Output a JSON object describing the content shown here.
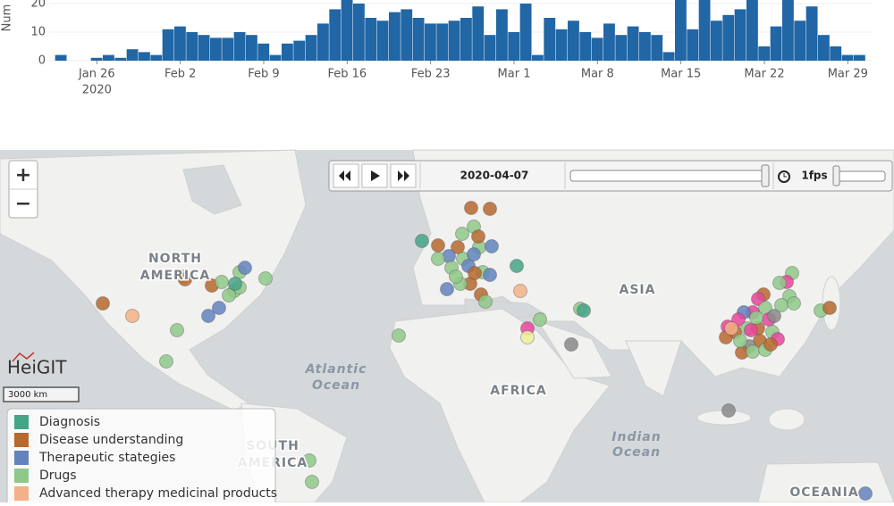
{
  "chart_data": {
    "type": "bar",
    "y_label": "Num",
    "color": "#2166a5",
    "x": [
      "2020-01-23",
      "2020-01-24",
      "2020-01-25",
      "2020-01-26",
      "2020-01-27",
      "2020-01-28",
      "2020-01-29",
      "2020-01-30",
      "2020-01-31",
      "2020-02-01",
      "2020-02-02",
      "2020-02-03",
      "2020-02-04",
      "2020-02-05",
      "2020-02-06",
      "2020-02-07",
      "2020-02-08",
      "2020-02-09",
      "2020-02-10",
      "2020-02-11",
      "2020-02-12",
      "2020-02-13",
      "2020-02-14",
      "2020-02-15",
      "2020-02-16",
      "2020-02-17",
      "2020-02-18",
      "2020-02-19",
      "2020-02-20",
      "2020-02-21",
      "2020-02-22",
      "2020-02-23",
      "2020-02-24",
      "2020-02-25",
      "2020-02-26",
      "2020-02-27",
      "2020-02-28",
      "2020-02-29",
      "2020-03-01",
      "2020-03-02",
      "2020-03-03",
      "2020-03-04",
      "2020-03-05",
      "2020-03-06",
      "2020-03-07",
      "2020-03-08",
      "2020-03-09",
      "2020-03-10",
      "2020-03-11",
      "2020-03-12",
      "2020-03-13",
      "2020-03-14",
      "2020-03-15",
      "2020-03-16",
      "2020-03-17",
      "2020-03-18",
      "2020-03-19",
      "2020-03-20",
      "2020-03-21",
      "2020-03-22",
      "2020-03-23",
      "2020-03-24",
      "2020-03-25",
      "2020-03-26",
      "2020-03-27",
      "2020-03-28",
      "2020-03-29",
      "2020-03-30"
    ],
    "values": [
      2,
      0,
      0,
      1,
      2,
      1,
      4,
      3,
      2,
      11,
      12,
      10,
      9,
      8,
      8,
      10,
      9,
      6,
      2,
      6,
      7,
      9,
      13,
      18,
      22,
      20,
      15,
      14,
      17,
      18,
      15,
      13,
      13,
      14,
      15,
      19,
      9,
      18,
      10,
      20,
      2,
      15,
      11,
      14,
      10,
      8,
      13,
      9,
      12,
      10,
      9,
      3,
      25,
      11,
      25,
      14,
      16,
      18,
      25,
      5,
      12,
      25,
      14,
      19,
      9,
      5,
      2,
      2
    ],
    "ylim": [
      0,
      21.25
    ],
    "yticks": [
      0,
      10,
      20
    ],
    "xlim": [
      "2020-01-22",
      "2020-03-31"
    ],
    "xticks": [
      {
        "value": "2020-01-26",
        "label": "Jan 26"
      },
      {
        "value": "2020-02-02",
        "label": "Feb 2"
      },
      {
        "value": "2020-02-09",
        "label": "Feb 9"
      },
      {
        "value": "2020-02-16",
        "label": "Feb 16"
      },
      {
        "value": "2020-02-23",
        "label": "Feb 23"
      },
      {
        "value": "2020-03-01",
        "label": "Mar 1"
      },
      {
        "value": "2020-03-08",
        "label": "Mar 8"
      },
      {
        "value": "2020-03-15",
        "label": "Mar 15"
      },
      {
        "value": "2020-03-22",
        "label": "Mar 22"
      },
      {
        "value": "2020-03-29",
        "label": "Mar 29"
      }
    ],
    "x_year_label": "2020"
  },
  "map": {
    "controls": {
      "zoom_in": "+",
      "zoom_out": "−",
      "date": "2020-04-07",
      "speed": "1fps"
    },
    "labels": {
      "north": "NORTH",
      "america": "AMERICA",
      "south": "SOUTH",
      "south_america": "AMERICA",
      "asia": "ASIA",
      "africa": "AFRICA",
      "atlantic": "Atlantic",
      "atlantic_ocean": "Ocean",
      "indian": "Indian",
      "indian_ocean": "Ocean",
      "oceania": "OCEANIA"
    },
    "logo": "HeiGIT",
    "scale": "3000 km",
    "legend": [
      {
        "name": "Diagnosis",
        "color": "#45a487"
      },
      {
        "name": "Disease understanding",
        "color": "#b7682f"
      },
      {
        "name": "Therapeutic stategies",
        "color": "#6383bd"
      },
      {
        "name": "Drugs",
        "color": "#8fc98a"
      },
      {
        "name": "Advanced therapy medicinal products",
        "color": "#f4b187"
      }
    ],
    "other_point_colors": [
      "#e8459b",
      "#8a8a8a",
      "#eef09a"
    ]
  }
}
